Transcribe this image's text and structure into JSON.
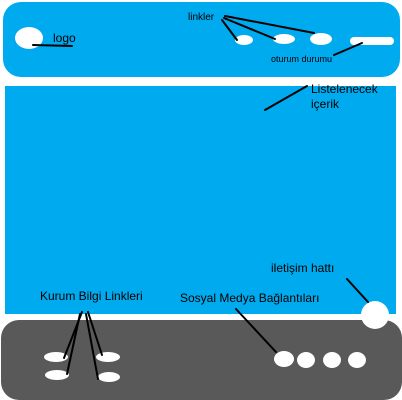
{
  "labels": {
    "logo": "logo",
    "linkler": "linkler",
    "oturum_durumu": "oturum durumu",
    "listelenecek": "Listelenecek",
    "icerik": "içerik",
    "iletisim_hatti": "iletişim hattı",
    "kurum_bilgi_linkleri": "Kurum Bilgi Linkleri",
    "sosyal_medya": "Sosyal Medya Bağlantıları"
  },
  "colors": {
    "header": "#00aaee",
    "content": "#00aaee",
    "footer": "#595959",
    "shape": "#ffffff",
    "ink": "#000000"
  }
}
